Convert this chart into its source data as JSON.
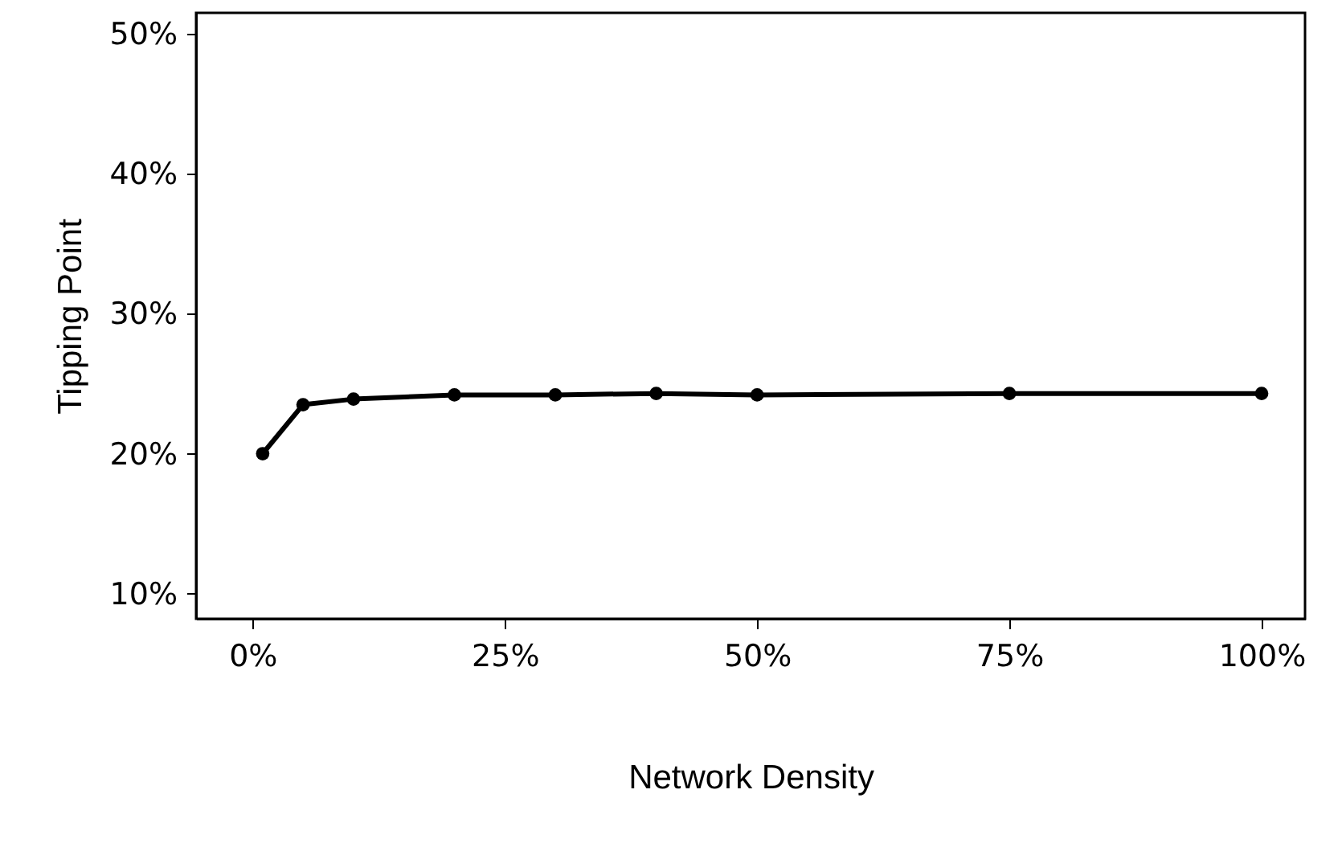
{
  "chart_data": {
    "type": "line",
    "xlabel": "Network Density",
    "ylabel": "Tipping Point",
    "x": [
      1,
      5,
      10,
      20,
      30,
      40,
      50,
      75,
      100
    ],
    "series": [
      {
        "color": "#000000",
        "values": [
          20,
          23.5,
          23.9,
          24.2,
          24.2,
          24.3,
          24.2,
          24.3,
          24.3
        ]
      }
    ],
    "xlim": [
      -5.6,
      104.3
    ],
    "ylim": [
      8.2,
      51.5
    ],
    "xticks": [
      {
        "value": 0,
        "label": "0%"
      },
      {
        "value": 25,
        "label": "25%"
      },
      {
        "value": 50,
        "label": "50%"
      },
      {
        "value": 75,
        "label": "75%"
      },
      {
        "value": 100,
        "label": "100%"
      }
    ],
    "yticks": [
      {
        "value": 10,
        "label": "10%"
      },
      {
        "value": 20,
        "label": "20%"
      },
      {
        "value": 30,
        "label": "30%"
      },
      {
        "value": 40,
        "label": "40%"
      },
      {
        "value": 50,
        "label": "50%"
      }
    ],
    "grid": false,
    "marker": "circle",
    "line_style": "solid"
  }
}
